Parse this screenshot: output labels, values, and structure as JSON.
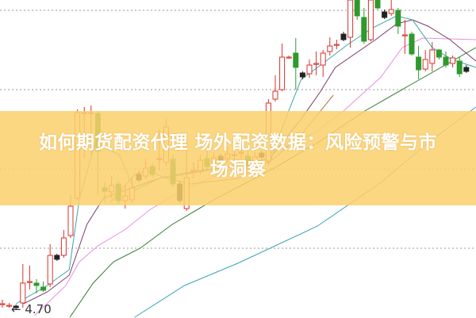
{
  "title": "如何期货配资代理 场外配资数据：风险预警与市场洞察",
  "title_line1": "如何期货配资代理 场外配资数据：风险预警与市",
  "title_line2": "场洞察",
  "colors": {
    "up": "#d9322c",
    "down": "#2e9a2c",
    "marker": "#222222",
    "ma5": "#3aa6a6",
    "ma10": "#7a3a6a",
    "ma20": "#e88ee0",
    "ma30": "#2f7a2f",
    "ma60": "#3aa0b8",
    "ma_brown": "#b0703a",
    "banner": "#fcd06e",
    "grid": "#999999"
  },
  "chart_data": {
    "type": "candlestick",
    "title": "",
    "xlabel": "",
    "ylabel": "",
    "ylim": [
      4.6,
      8.6
    ],
    "grid": "horizontal dotted",
    "min_label": "4.70",
    "candles": [
      [
        4.77,
        4.77,
        4.82,
        4.72
      ],
      [
        4.75,
        4.75,
        4.78,
        4.72
      ],
      [
        4.74,
        4.72,
        4.76,
        4.7
      ],
      [
        4.78,
        5.03,
        5.27,
        4.72
      ],
      [
        5.05,
        5.05,
        5.25,
        4.95
      ],
      [
        5.03,
        5.0,
        5.08,
        4.9
      ],
      [
        4.98,
        4.94,
        5.05,
        4.92
      ],
      [
        5.02,
        5.38,
        5.52,
        4.98
      ],
      [
        5.38,
        5.33,
        5.4,
        5.31
      ],
      [
        5.38,
        5.6,
        5.7,
        5.35
      ],
      [
        5.63,
        6.0,
        6.14,
        5.6
      ],
      [
        6.1,
        7.18,
        7.22,
        6.08
      ],
      [
        7.18,
        7.18,
        7.25,
        6.6
      ],
      [
        7.18,
        7.18,
        7.27,
        6.65
      ],
      [
        7.17,
        6.7,
        7.2,
        6.15
      ],
      [
        6.23,
        6.19,
        6.3,
        6.05
      ],
      [
        6.18,
        6.26,
        6.38,
        6.1
      ],
      [
        6.28,
        6.07,
        6.32,
        6.02
      ],
      [
        6.07,
        6.13,
        6.27,
        5.97
      ],
      [
        6.08,
        6.23,
        6.35,
        6.05
      ],
      [
        6.4,
        6.33,
        6.45,
        6.3
      ],
      [
        6.38,
        6.48,
        6.6,
        6.34
      ],
      [
        6.5,
        6.4,
        6.54,
        6.36
      ],
      [
        6.6,
        6.6,
        6.97,
        6.45
      ],
      [
        6.55,
        7.0,
        7.1,
        6.5
      ],
      [
        6.59,
        6.28,
        6.65,
        6.24
      ],
      [
        6.28,
        6.07,
        6.32,
        6.04
      ],
      [
        5.97,
        6.36,
        6.85,
        5.94
      ],
      [
        6.45,
        6.45,
        6.55,
        6.35
      ],
      [
        6.45,
        6.58,
        6.65,
        6.4
      ],
      [
        6.6,
        6.5,
        6.7,
        6.45
      ],
      [
        6.55,
        6.61,
        6.68,
        6.5
      ],
      [
        6.63,
        6.57,
        6.66,
        6.54
      ],
      [
        6.6,
        6.66,
        6.75,
        6.55
      ],
      [
        6.65,
        6.65,
        6.75,
        6.55
      ],
      [
        6.68,
        6.68,
        6.78,
        6.6
      ],
      [
        6.63,
        6.5,
        6.72,
        6.46
      ],
      [
        6.55,
        6.62,
        6.68,
        6.52
      ],
      [
        6.67,
        6.62,
        6.7,
        6.6
      ],
      [
        6.57,
        7.3,
        7.35,
        6.52
      ],
      [
        7.35,
        7.45,
        7.65,
        7.32
      ],
      [
        7.47,
        7.88,
        8.05,
        7.45
      ],
      [
        7.88,
        7.88,
        7.9,
        7.86
      ],
      [
        7.93,
        7.75,
        8.12,
        7.47
      ],
      [
        7.68,
        7.63,
        7.7,
        7.6
      ],
      [
        7.67,
        7.78,
        7.85,
        7.62
      ],
      [
        7.8,
        7.8,
        7.95,
        7.65
      ],
      [
        7.78,
        7.93,
        7.97,
        7.63
      ],
      [
        7.95,
        8.02,
        8.13,
        7.9
      ],
      [
        8.04,
        8.04,
        8.1,
        7.98
      ],
      [
        8.17,
        8.1,
        8.2,
        8.08
      ],
      [
        8.13,
        8.6,
        8.6,
        8.0
      ],
      [
        8.6,
        8.4,
        8.6,
        8.35
      ],
      [
        8.38,
        8.08,
        8.5,
        8.05
      ],
      [
        8.1,
        8.6,
        8.6,
        8.08
      ],
      [
        8.6,
        8.5,
        8.6,
        8.48
      ],
      [
        8.45,
        8.38,
        8.48,
        8.36
      ],
      [
        8.43,
        8.48,
        8.6,
        8.4
      ],
      [
        8.47,
        8.27,
        8.5,
        8.17
      ],
      [
        8.16,
        8.16,
        8.35,
        7.92
      ],
      [
        8.17,
        7.92,
        8.2,
        7.9
      ],
      [
        7.88,
        7.72,
        8.02,
        7.6
      ],
      [
        7.73,
        7.85,
        7.97,
        7.7
      ],
      [
        7.8,
        7.97,
        8.07,
        7.7
      ],
      [
        7.97,
        7.88,
        7.98,
        7.85
      ],
      [
        7.88,
        7.78,
        7.95,
        7.75
      ],
      [
        7.8,
        7.87,
        7.9,
        7.75
      ],
      [
        7.83,
        7.67,
        7.88,
        7.63
      ],
      [
        7.75,
        7.7,
        7.78,
        7.68
      ]
    ],
    "marker_candles": [
      2,
      8,
      20,
      26,
      32,
      38,
      44,
      50,
      56,
      68
    ],
    "moving_averages": {
      "ma5": [
        [
          2.0,
          4.77
        ],
        [
          6.6,
          5.0
        ],
        [
          9.8,
          5.2
        ],
        [
          11.3,
          6.1
        ],
        [
          13.6,
          6.8
        ],
        [
          17.1,
          6.65
        ],
        [
          19.4,
          6.2
        ],
        [
          22.9,
          6.35
        ],
        [
          28.7,
          6.45
        ],
        [
          39.2,
          6.55
        ],
        [
          41.5,
          7.1
        ],
        [
          43.8,
          7.6
        ],
        [
          46.2,
          7.75
        ],
        [
          50.8,
          8.05
        ],
        [
          54.3,
          8.25
        ],
        [
          57.8,
          8.4
        ],
        [
          60.1,
          8.35
        ],
        [
          63.0,
          8.0
        ],
        [
          65.9,
          7.85
        ],
        [
          69.4,
          7.75
        ]
      ],
      "ma10": [
        [
          3.1,
          4.77
        ],
        [
          6.6,
          4.92
        ],
        [
          9.8,
          5.13
        ],
        [
          12.4,
          5.77
        ],
        [
          14.8,
          6.1
        ],
        [
          22.9,
          6.35
        ],
        [
          29.9,
          6.45
        ],
        [
          39.2,
          6.6
        ],
        [
          43.8,
          7.1
        ],
        [
          46.5,
          7.43
        ],
        [
          48.8,
          7.75
        ],
        [
          54.7,
          8.1
        ],
        [
          57.8,
          8.3
        ],
        [
          60.1,
          8.35
        ],
        [
          62.4,
          8.27
        ],
        [
          65.6,
          8.1
        ],
        [
          69.4,
          7.83
        ]
      ],
      "ma20": [
        [
          4.7,
          4.62
        ],
        [
          9.3,
          5.0
        ],
        [
          11.3,
          5.3
        ],
        [
          14.0,
          5.5
        ],
        [
          17.9,
          5.7
        ],
        [
          21.7,
          5.96
        ],
        [
          26.4,
          6.2
        ],
        [
          34.5,
          6.5
        ],
        [
          41.5,
          6.75
        ],
        [
          46.2,
          6.95
        ],
        [
          50.0,
          7.2
        ],
        [
          55.5,
          7.63
        ],
        [
          58.6,
          8.0
        ],
        [
          61.6,
          8.12
        ],
        [
          69.4,
          8.1
        ]
      ],
      "ma30": [
        [
          9.9,
          4.6
        ],
        [
          13.3,
          5.03
        ],
        [
          16.3,
          5.3
        ],
        [
          20.2,
          5.47
        ],
        [
          24.9,
          5.77
        ],
        [
          31.4,
          6.1
        ],
        [
          39.2,
          6.45
        ],
        [
          46.2,
          6.8
        ],
        [
          53.1,
          7.2
        ],
        [
          59.8,
          7.53
        ],
        [
          69.4,
          8.0
        ]
      ],
      "ma60": [
        [
          19.4,
          4.6
        ],
        [
          26.7,
          5.0
        ],
        [
          34.5,
          5.28
        ],
        [
          46.2,
          5.75
        ],
        [
          55.5,
          6.3
        ],
        [
          62.4,
          6.8
        ],
        [
          69.4,
          7.25
        ]
      ],
      "ma_brown": [
        [
          15.9,
          6.05
        ],
        [
          19.4,
          6.4
        ],
        [
          21.2,
          6.45
        ],
        [
          24.1,
          6.35
        ],
        [
          27.6,
          6.28
        ],
        [
          34.5,
          6.35
        ],
        [
          39.8,
          6.6
        ],
        [
          43.8,
          6.9
        ],
        [
          48.5,
          7.4
        ]
      ]
    }
  }
}
